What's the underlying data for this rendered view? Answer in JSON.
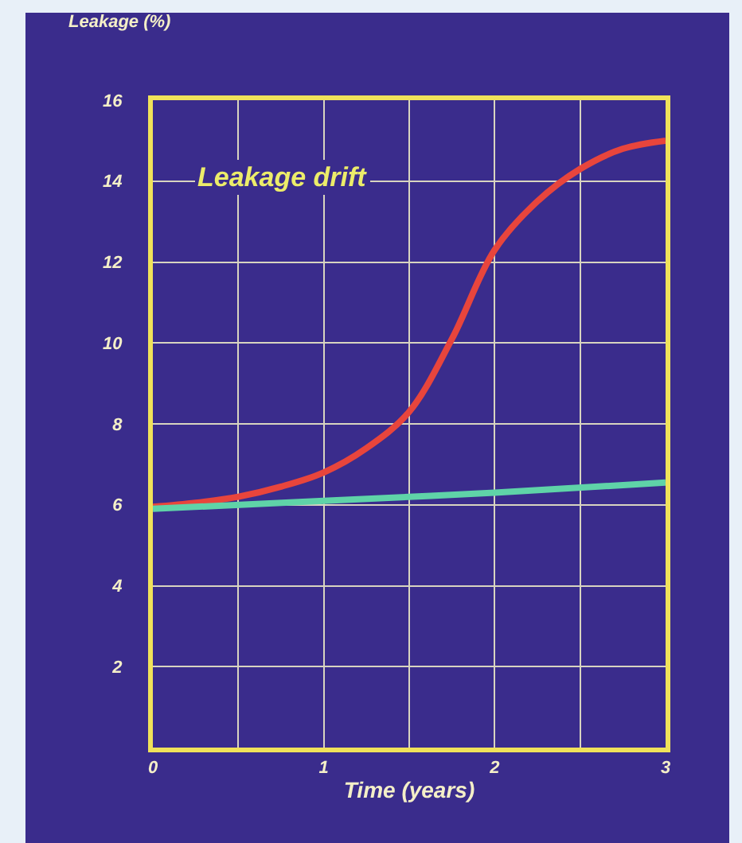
{
  "chart_data": {
    "type": "line",
    "xlabel": "Time (years)",
    "ylabel": "Leakage (%)",
    "annotations": [
      "Leakage drift"
    ],
    "xlim": [
      0,
      3
    ],
    "xticks": [
      0,
      {
        "value": 0.5,
        "label": null
      },
      1,
      {
        "value": 1.5,
        "label": null
      },
      2,
      {
        "value": 2.5,
        "label": null
      },
      3
    ],
    "ylim": [
      0,
      16
    ],
    "yticks": [
      2,
      4,
      6,
      8,
      10,
      12,
      14,
      16
    ],
    "grid": true,
    "marker": "none",
    "line_style": "solid",
    "series": [
      {
        "color": "#e8453c",
        "x": [
          0,
          0.25,
          0.5,
          0.75,
          1,
          1.25,
          1.5,
          1.75,
          2,
          2.25,
          2.5,
          2.75,
          3
        ],
        "values": [
          5.95,
          6.05,
          6.2,
          6.45,
          6.8,
          7.4,
          8.3,
          10.1,
          12.3,
          13.5,
          14.3,
          14.8,
          15.0
        ]
      },
      {
        "color": "#5fd3a8",
        "x": [
          0,
          1,
          2,
          3
        ],
        "values": [
          5.9,
          6.1,
          6.3,
          6.55
        ]
      }
    ]
  }
}
